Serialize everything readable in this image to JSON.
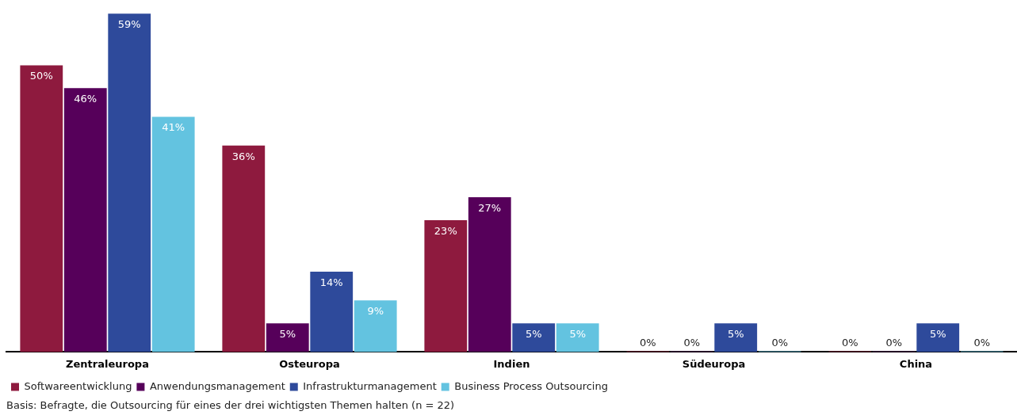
{
  "chart_data": {
    "type": "bar",
    "categories": [
      "Zentraleuropa",
      "Osteuropa",
      "Indien",
      "Südeuropa",
      "China"
    ],
    "series": [
      {
        "name": "Softwareentwicklung",
        "color": "#8e1a3e",
        "values": [
          50,
          36,
          23,
          0,
          0
        ],
        "value_labels": [
          "50%",
          "36%",
          "23%",
          "0%",
          "0%"
        ]
      },
      {
        "name": "Anwendungsmanagement",
        "color": "#56005a",
        "values": [
          46,
          5,
          27,
          0,
          0
        ],
        "value_labels": [
          "46%",
          "5%",
          "27%",
          "0%",
          "0%"
        ]
      },
      {
        "name": "Infrastrukturmanagement",
        "color": "#2e4a9b",
        "values": [
          59,
          14,
          5,
          5,
          5
        ],
        "value_labels": [
          "59%",
          "14%",
          "5%",
          "5%",
          "5%"
        ]
      },
      {
        "name": "Business Process Outsourcing",
        "color": "#63c3e0",
        "values": [
          41,
          9,
          5,
          0,
          0
        ],
        "value_labels": [
          "41%",
          "9%",
          "5%",
          "0%",
          "0%"
        ]
      }
    ],
    "tick_labels": "x",
    "grid": false,
    "legend": "bottom",
    "annotations": [
      "Basis: Befragte, die Outsourcing für eines der drei wichtigsten Themen halten (n = 22)"
    ]
  }
}
